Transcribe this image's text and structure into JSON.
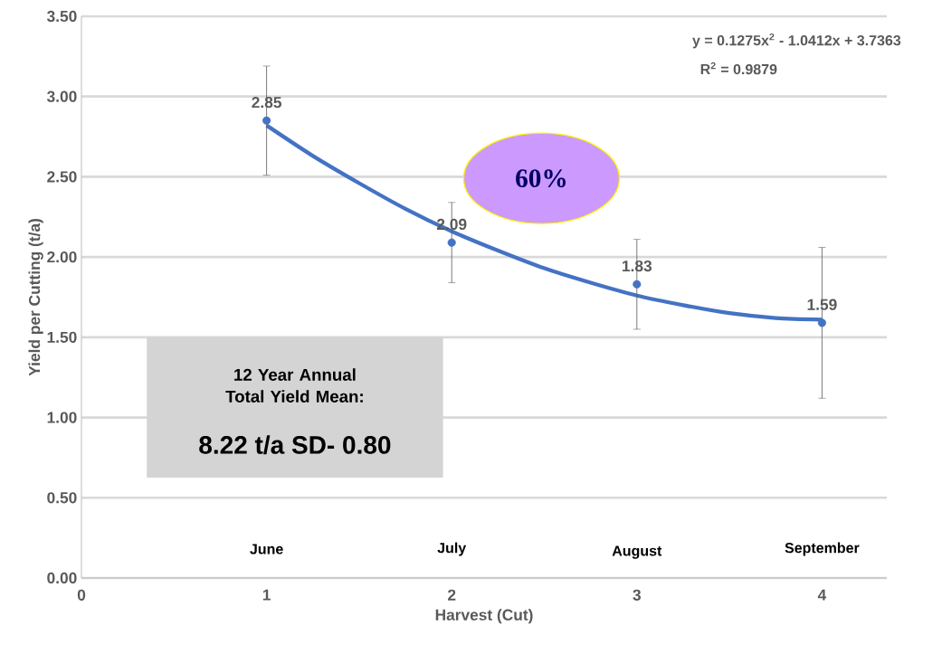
{
  "chart_data": {
    "type": "scatter",
    "xlabel": "Harvest (Cut)",
    "ylabel": "Yield per Cutting (t/a)",
    "xlim": [
      0,
      4.35
    ],
    "xticks": [
      0,
      1,
      2,
      3,
      4
    ],
    "ylim": [
      0,
      3.5
    ],
    "yticks": [
      {
        "value": 0,
        "label": "0.00"
      },
      {
        "value": 0.5,
        "label": "0.50"
      },
      {
        "value": 1,
        "label": "1.00"
      },
      {
        "value": 1.5,
        "label": "1.50"
      },
      {
        "value": 2,
        "label": "2.00"
      },
      {
        "value": 2.5,
        "label": "2.50"
      },
      {
        "value": 3,
        "label": "3.00"
      },
      {
        "value": 3.5,
        "label": "3.50"
      }
    ],
    "grid": "y",
    "marker": "circle",
    "series": [
      {
        "color": "#4472c4",
        "x": [
          1,
          2,
          3,
          4
        ],
        "values": [
          2.85,
          2.09,
          1.83,
          1.59
        ],
        "errors": [
          0.34,
          0.25,
          0.28,
          0.47
        ],
        "value_labels": [
          "2.85",
          "2.09",
          "1.83",
          "1.59"
        ]
      },
      {
        "type": "line",
        "color": "#4472c4",
        "marker": "none",
        "x": [
          1,
          1.25,
          1.5,
          1.75,
          2,
          2.25,
          2.5,
          2.75,
          3,
          3.25,
          3.5,
          3.75,
          4
        ],
        "values": [
          2.82,
          2.63,
          2.46,
          2.3,
          2.16,
          2.04,
          1.93,
          1.84,
          1.76,
          1.7,
          1.65,
          1.62,
          1.61
        ]
      }
    ],
    "annotations": [
      "y = 0.1275x$^{2}$ - 1.0412x + 3.7363",
      "R$^{2}$ = 0.9879",
      "60%",
      "12 Year Annual Total Yield Mean:",
      "8.22 t/a SD- 0.80",
      "June",
      "July",
      "August",
      "September"
    ]
  }
}
